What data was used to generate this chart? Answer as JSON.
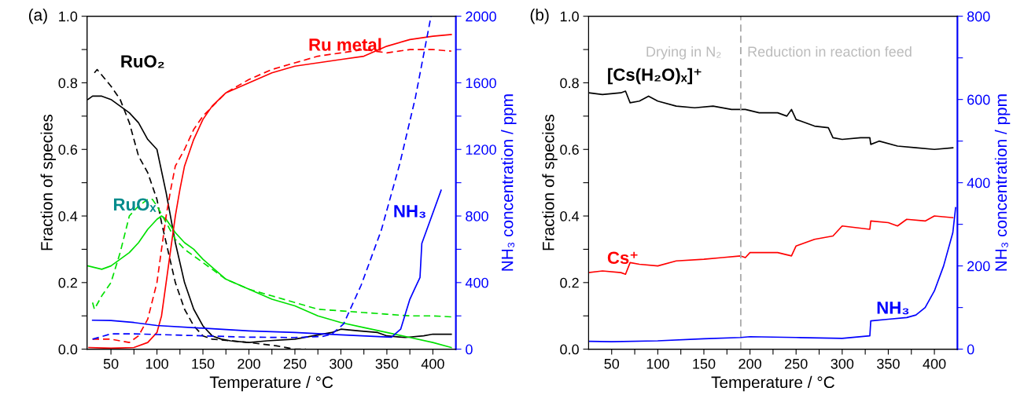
{
  "chart_data": [
    {
      "type": "line",
      "title": null,
      "annotations": [
        "(a)"
      ],
      "xlabel": "Temperature / °C",
      "ylabel": "Fraction of species",
      "y2label": "NH₃ concentration / ppm",
      "xlim": [
        24,
        425
      ],
      "ylim": [
        0,
        1
      ],
      "y2lim": [
        0,
        2000
      ],
      "xticks": [
        50,
        {
          "value": 75,
          "label": null
        },
        100,
        {
          "value": 125,
          "label": null
        },
        150,
        {
          "value": 175,
          "label": null
        },
        200,
        {
          "value": 225,
          "label": null
        },
        250,
        {
          "value": 275,
          "label": null
        },
        300,
        {
          "value": 325,
          "label": null
        },
        350,
        {
          "value": 375,
          "label": null
        },
        400
      ],
      "yticks": [
        {
          "value": 0,
          "label": "0.0"
        },
        {
          "value": 0.1,
          "label": null
        },
        {
          "value": 0.2,
          "label": "0.2"
        },
        {
          "value": 0.3,
          "label": null
        },
        {
          "value": 0.4,
          "label": "0.4"
        },
        {
          "value": 0.5,
          "label": null
        },
        {
          "value": 0.6,
          "label": "0.6"
        },
        {
          "value": 0.7,
          "label": null
        },
        {
          "value": 0.8,
          "label": "0.8"
        },
        {
          "value": 0.9,
          "label": null
        },
        {
          "value": 1.0,
          "label": "1.0"
        }
      ],
      "y2ticks": [
        0,
        {
          "value": 200,
          "label": null
        },
        400,
        {
          "value": 600,
          "label": null
        },
        800,
        {
          "value": 1000,
          "label": null
        },
        1200,
        {
          "value": 1400,
          "label": null
        },
        1600,
        {
          "value": 1800,
          "label": null
        },
        2000
      ],
      "grid": false,
      "legend": false,
      "marker": "none",
      "series": [
        {
          "name": "RuO₂",
          "color": "#000000",
          "line_style": "solid",
          "x": [
            25,
            30,
            40,
            50,
            60,
            70,
            80,
            90,
            100,
            110,
            120,
            130,
            140,
            150,
            160,
            170,
            180,
            200,
            220,
            250,
            270,
            290,
            300,
            320,
            340,
            350,
            370,
            390,
            400,
            420
          ],
          "values": [
            0.75,
            0.76,
            0.76,
            0.75,
            0.73,
            0.71,
            0.68,
            0.63,
            0.6,
            0.47,
            0.32,
            0.2,
            0.12,
            0.07,
            0.04,
            0.03,
            0.025,
            0.02,
            0.025,
            0.03,
            0.04,
            0.05,
            0.06,
            0.055,
            0.05,
            0.04,
            0.035,
            0.04,
            0.045,
            0.045
          ]
        },
        {
          "color": "#000000",
          "line_style": "dashed",
          "x": [
            32,
            35,
            50,
            60,
            70,
            80,
            90,
            100,
            105,
            110,
            120,
            130,
            140,
            150,
            160,
            200,
            230,
            250,
            262
          ],
          "values": [
            0.83,
            0.84,
            0.79,
            0.75,
            0.68,
            0.58,
            0.53,
            0.45,
            0.38,
            0.32,
            0.2,
            0.12,
            0.07,
            0.04,
            0.03,
            0.02,
            0.01,
            0.0,
            0.0
          ]
        },
        {
          "name": "RuOₓ",
          "color": "#00e000",
          "line_style": "solid",
          "x": [
            25,
            40,
            50,
            60,
            70,
            80,
            90,
            100,
            105,
            110,
            120,
            130,
            140,
            150,
            175,
            200,
            225,
            250,
            275,
            300,
            325,
            350,
            375,
            400,
            420
          ],
          "values": [
            0.25,
            0.24,
            0.25,
            0.27,
            0.29,
            0.32,
            0.36,
            0.39,
            0.4,
            0.39,
            0.35,
            0.32,
            0.3,
            0.27,
            0.21,
            0.18,
            0.15,
            0.13,
            0.1,
            0.08,
            0.065,
            0.05,
            0.035,
            0.02,
            0.005
          ]
        },
        {
          "color": "#00e000",
          "line_style": "dashed",
          "x": [
            30,
            32,
            40,
            50,
            60,
            70,
            80,
            90,
            95,
            100,
            110,
            120,
            130,
            150,
            175,
            200,
            225,
            250,
            275,
            300,
            325,
            350,
            375,
            400,
            420
          ],
          "values": [
            0.14,
            0.12,
            0.16,
            0.2,
            0.29,
            0.4,
            0.43,
            0.45,
            0.45,
            0.43,
            0.38,
            0.33,
            0.3,
            0.26,
            0.21,
            0.18,
            0.16,
            0.14,
            0.12,
            0.115,
            0.11,
            0.105,
            0.1,
            0.1,
            0.097
          ]
        },
        {
          "name": "Ru metal",
          "color": "#ff0000",
          "line_style": "solid",
          "x": [
            26,
            50,
            75,
            90,
            100,
            105,
            110,
            115,
            120,
            125,
            130,
            140,
            150,
            160,
            175,
            200,
            225,
            250,
            275,
            300,
            325,
            350,
            375,
            400,
            420
          ],
          "values": [
            0.005,
            0.003,
            0.005,
            0.02,
            0.05,
            0.1,
            0.2,
            0.3,
            0.4,
            0.48,
            0.55,
            0.63,
            0.69,
            0.73,
            0.77,
            0.8,
            0.83,
            0.85,
            0.86,
            0.87,
            0.88,
            0.91,
            0.93,
            0.94,
            0.945
          ]
        },
        {
          "color": "#ff0000",
          "line_style": "dashed",
          "x": [
            30,
            50,
            70,
            80,
            90,
            100,
            105,
            110,
            115,
            120,
            130,
            140,
            150,
            175,
            200,
            225,
            250,
            275,
            300,
            325,
            350,
            375,
            400,
            420
          ],
          "values": [
            0.03,
            0.03,
            0.02,
            0.04,
            0.09,
            0.2,
            0.3,
            0.4,
            0.48,
            0.55,
            0.6,
            0.66,
            0.7,
            0.77,
            0.81,
            0.84,
            0.86,
            0.88,
            0.89,
            0.9,
            0.89,
            0.9,
            0.9,
            0.895
          ]
        },
        {
          "name": "NH₃",
          "color": "#0000ff",
          "line_style": "solid",
          "axis": "y2",
          "x": [
            30,
            50,
            75,
            100,
            150,
            200,
            250,
            300,
            350,
            355,
            365,
            375,
            380,
            386,
            388,
            409
          ],
          "values": [
            174,
            172,
            160,
            142,
            126,
            110,
            100,
            86,
            73,
            72,
            120,
            300,
            360,
            430,
            635,
            955
          ]
        },
        {
          "color": "#0000ff",
          "line_style": "dashed",
          "axis": "y2",
          "x": [
            30,
            50,
            75,
            100,
            150,
            200,
            250,
            280,
            290,
            303,
            322,
            344,
            364,
            381,
            398
          ],
          "values": [
            60,
            92,
            92,
            88,
            80,
            72,
            70,
            76,
            90,
            152,
            384,
            716,
            1113,
            1511,
            2000
          ]
        }
      ]
    },
    {
      "type": "line",
      "title": null,
      "annotations": [
        "(b)",
        "Drying in N₂",
        "Reduction in reaction feed"
      ],
      "xlabel": "Temperature / °C",
      "ylabel": "Fraction of species",
      "y2label": "NH₃ concentration / ppm",
      "xlim": [
        25,
        425
      ],
      "ylim": [
        0,
        1
      ],
      "y2lim": [
        0,
        800
      ],
      "xticks": [
        50,
        {
          "value": 75,
          "label": null
        },
        100,
        {
          "value": 125,
          "label": null
        },
        150,
        {
          "value": 175,
          "label": null
        },
        200,
        {
          "value": 225,
          "label": null
        },
        250,
        {
          "value": 275,
          "label": null
        },
        300,
        {
          "value": 325,
          "label": null
        },
        350,
        {
          "value": 375,
          "label": null
        },
        400
      ],
      "yticks": [
        {
          "value": 0,
          "label": "0.0"
        },
        {
          "value": 0.1,
          "label": null
        },
        {
          "value": 0.2,
          "label": "0.2"
        },
        {
          "value": 0.3,
          "label": null
        },
        {
          "value": 0.4,
          "label": "0.4"
        },
        {
          "value": 0.5,
          "label": null
        },
        {
          "value": 0.6,
          "label": "0.6"
        },
        {
          "value": 0.7,
          "label": null
        },
        {
          "value": 0.8,
          "label": "0.8"
        },
        {
          "value": 0.9,
          "label": null
        },
        {
          "value": 1.0,
          "label": "1.0"
        }
      ],
      "y2ticks": [
        0,
        {
          "value": 100,
          "label": null
        },
        200,
        {
          "value": 300,
          "label": null
        },
        400,
        {
          "value": 500,
          "label": null
        },
        600,
        {
          "value": 700,
          "label": null
        },
        800
      ],
      "grid": false,
      "legend": false,
      "marker": "none",
      "ref_lines": [
        {
          "axis": "x",
          "value": 190,
          "color": "#aaaaaa",
          "line_style": "dashed"
        }
      ],
      "series": [
        {
          "name": "[Cs(H₂O)ₓ]⁺",
          "color": "#000000",
          "line_style": "solid",
          "x": [
            25,
            40,
            60,
            65,
            70,
            80,
            90,
            100,
            120,
            140,
            160,
            180,
            190,
            195,
            210,
            230,
            240,
            245,
            250,
            270,
            285,
            290,
            300,
            320,
            330,
            331,
            340,
            360,
            380,
            400,
            420
          ],
          "values": [
            0.77,
            0.765,
            0.77,
            0.775,
            0.74,
            0.745,
            0.76,
            0.745,
            0.73,
            0.725,
            0.73,
            0.72,
            0.72,
            0.72,
            0.71,
            0.71,
            0.7,
            0.72,
            0.69,
            0.67,
            0.665,
            0.635,
            0.63,
            0.635,
            0.635,
            0.615,
            0.625,
            0.61,
            0.605,
            0.6,
            0.605
          ]
        },
        {
          "name": "Cs⁺",
          "color": "#ff0000",
          "line_style": "solid",
          "x": [
            25,
            40,
            60,
            65,
            70,
            80,
            100,
            120,
            150,
            170,
            190,
            195,
            200,
            230,
            245,
            250,
            270,
            290,
            300,
            330,
            331,
            350,
            360,
            370,
            390,
            400,
            420
          ],
          "values": [
            0.23,
            0.235,
            0.23,
            0.225,
            0.26,
            0.255,
            0.25,
            0.265,
            0.27,
            0.275,
            0.28,
            0.275,
            0.29,
            0.29,
            0.28,
            0.31,
            0.33,
            0.34,
            0.37,
            0.36,
            0.385,
            0.38,
            0.37,
            0.39,
            0.385,
            0.4,
            0.395
          ]
        },
        {
          "name": "NH₃",
          "color": "#0000ff",
          "line_style": "solid",
          "axis": "y2",
          "x": [
            25,
            50,
            100,
            150,
            190,
            200,
            250,
            300,
            330,
            331,
            350,
            370,
            380,
            390,
            400,
            410,
            420,
            423
          ],
          "values": [
            19,
            18,
            20,
            25,
            28,
            30,
            28,
            26,
            32,
            68,
            72,
            76,
            82,
            100,
            140,
            200,
            280,
            340
          ]
        }
      ]
    }
  ]
}
